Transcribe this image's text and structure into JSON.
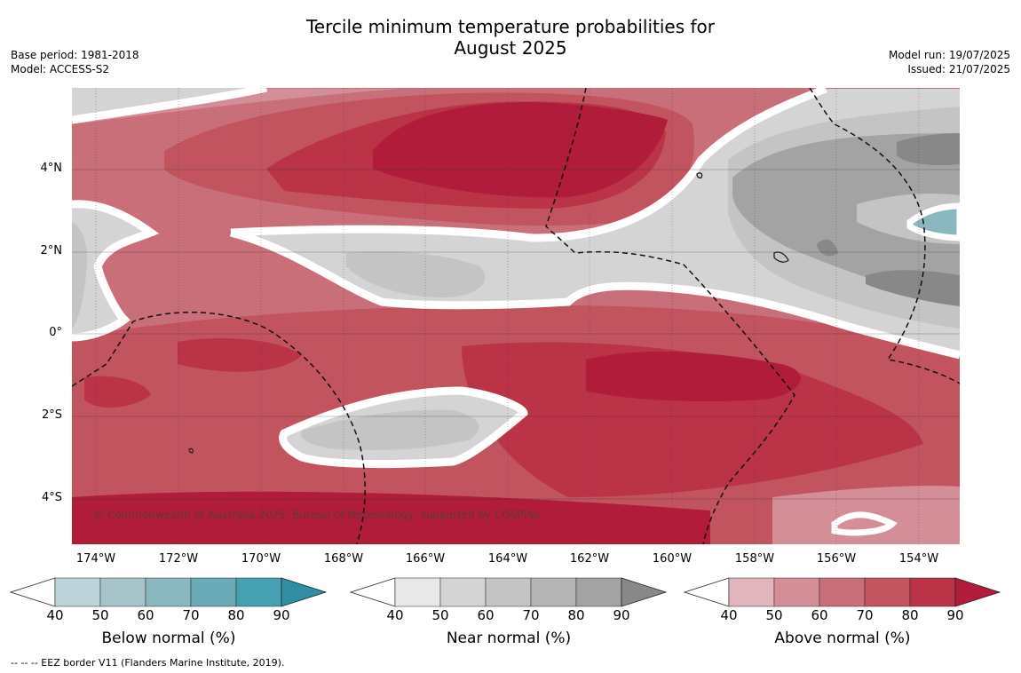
{
  "header": {
    "title_line1": "Tercile minimum temperature probabilities for",
    "title_line2": "August 2025",
    "base_period": "Base period: 1981-2018",
    "model": "Model: ACCESS-S2",
    "model_run": "Model run: 19/07/2025",
    "issued": "Issued: 21/07/2025"
  },
  "map": {
    "y_ticks": [
      "4°N",
      "2°N",
      "0°",
      "2°S",
      "4°S"
    ],
    "x_ticks": [
      "174°W",
      "172°W",
      "170°W",
      "168°W",
      "166°W",
      "164°W",
      "162°W",
      "160°W",
      "158°W",
      "156°W",
      "154°W"
    ],
    "copyright": "© Commonwealth of Australia 2025, Bureau of Meteorology, supported by COSPPac",
    "colors": {
      "above": [
        "#e2b5bc",
        "#d48e98",
        "#c96f7a",
        "#c2545f",
        "#bb3347",
        "#b01c3a"
      ],
      "near": [
        "#e9e9e9",
        "#d4d4d4",
        "#c4c4c4",
        "#b5b5b5",
        "#a3a3a3",
        "#888888"
      ],
      "below": [
        "#bdd3d9",
        "#a6c4c9",
        "#8bb7bf",
        "#6aabb7",
        "#45a0b1",
        "#2f8ea2"
      ]
    }
  },
  "colorbars": [
    {
      "title": "Below normal (%)",
      "ticks": [
        "40",
        "50",
        "60",
        "70",
        "80",
        "90"
      ]
    },
    {
      "title": "Near normal (%)",
      "ticks": [
        "40",
        "50",
        "60",
        "70",
        "80",
        "90"
      ]
    },
    {
      "title": "Above normal (%)",
      "ticks": [
        "40",
        "50",
        "60",
        "70",
        "80",
        "90"
      ]
    }
  ],
  "footnote": "--  --  -- EEZ border V11 (Flanders Marine Institute, 2019)."
}
